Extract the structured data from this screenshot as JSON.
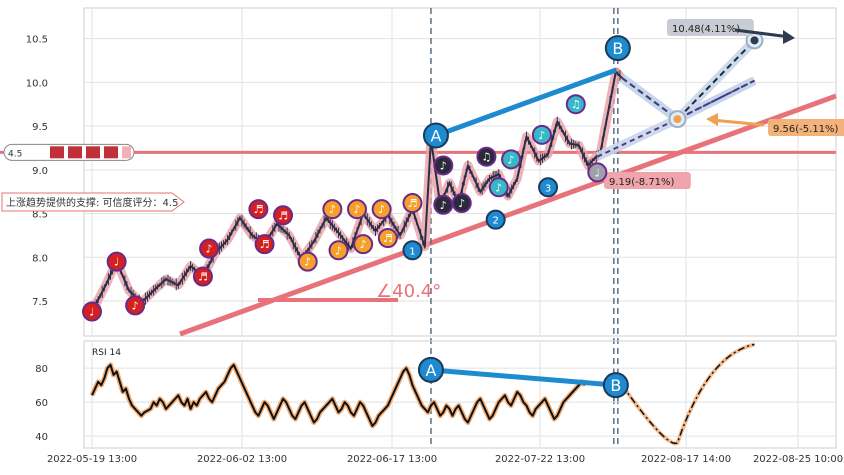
{
  "chart_data": [
    {
      "type": "candlestick",
      "y_ticks": [
        "7.5",
        "8.0",
        "8.5",
        "9.0",
        "9.5",
        "10.0",
        "10.5"
      ],
      "ylim": [
        7.1,
        10.85
      ],
      "x_ticks": [
        "2022-05-19 13:00",
        "2022-06-02 13:00",
        "2022-06-17 13:00",
        "2022-07-22 13:00",
        "2022-08-17 14:00",
        "2022-08-25 10:00"
      ],
      "support_level": {
        "label": "4.5",
        "value": 9.2
      },
      "support_text": "上涨趋势提供的支撑: 可信度评分：4.5",
      "angle_label": "∠40.4°",
      "wave_labels": [
        "A",
        "B"
      ],
      "wave_digits": [
        "1",
        "2",
        "3"
      ],
      "targets": [
        {
          "label": "10.48(4.11%)",
          "value": 10.48
        },
        {
          "label": "9.56(-5.11%)",
          "value": 9.56
        },
        {
          "label": "9.19(-8.71%)",
          "value": 9.19
        }
      ],
      "price_path": [
        [
          0,
          7.38
        ],
        [
          4,
          7.65
        ],
        [
          8,
          7.95
        ],
        [
          12,
          7.62
        ],
        [
          16,
          7.48
        ],
        [
          20,
          7.62
        ],
        [
          24,
          7.75
        ],
        [
          28,
          7.68
        ],
        [
          32,
          7.9
        ],
        [
          36,
          7.78
        ],
        [
          40,
          8.05
        ],
        [
          44,
          8.2
        ],
        [
          48,
          8.45
        ],
        [
          52,
          8.25
        ],
        [
          56,
          8.15
        ],
        [
          60,
          8.38
        ],
        [
          64,
          8.25
        ],
        [
          68,
          7.98
        ],
        [
          72,
          8.18
        ],
        [
          76,
          8.45
        ],
        [
          80,
          8.28
        ],
        [
          84,
          8.1
        ],
        [
          88,
          8.5
        ],
        [
          92,
          8.3
        ],
        [
          96,
          8.48
        ],
        [
          100,
          8.25
        ],
        [
          104,
          8.55
        ],
        [
          108,
          8.12
        ],
        [
          110,
          9.35
        ],
        [
          113,
          8.6
        ],
        [
          116,
          8.85
        ],
        [
          119,
          8.62
        ],
        [
          122,
          9.05
        ],
        [
          126,
          8.75
        ],
        [
          129,
          8.9
        ],
        [
          132,
          8.95
        ],
        [
          135,
          8.7
        ],
        [
          138,
          8.9
        ],
        [
          141,
          9.38
        ],
        [
          145,
          9.1
        ],
        [
          148,
          9.18
        ],
        [
          151,
          9.55
        ],
        [
          155,
          9.3
        ],
        [
          158,
          9.28
        ],
        [
          161,
          9.05
        ],
        [
          165,
          9.2
        ],
        [
          170,
          10.12
        ],
        [
          172,
          10.05
        ]
      ],
      "projection_path": [
        [
          172,
          10.05
        ],
        [
          190,
          9.58
        ],
        [
          215,
          10.48
        ]
      ],
      "projection_alt_path": [
        [
          172,
          10.05
        ],
        [
          190,
          9.58
        ],
        [
          215,
          10.02
        ]
      ],
      "projection_low_path": [
        [
          164,
          9.15
        ],
        [
          190,
          9.58
        ],
        [
          215,
          10.02
        ]
      ],
      "ab_price": {
        "A": [
          110,
          9.37
        ],
        "B": [
          170,
          10.14
        ]
      },
      "markers": [
        {
          "x": 0,
          "y": 7.38,
          "glyph": "♩",
          "color": "#d42020"
        },
        {
          "x": 8,
          "y": 7.95,
          "glyph": "♩",
          "color": "#d42020"
        },
        {
          "x": 14,
          "y": 7.45,
          "glyph": "♪",
          "color": "#d42020"
        },
        {
          "x": 36,
          "y": 7.78,
          "glyph": "♬",
          "color": "#d42020"
        },
        {
          "x": 38,
          "y": 8.1,
          "glyph": "♪",
          "color": "#d42020"
        },
        {
          "x": 54,
          "y": 8.55,
          "glyph": "♬",
          "color": "#d42020"
        },
        {
          "x": 56,
          "y": 8.15,
          "glyph": "♬",
          "color": "#d42020"
        },
        {
          "x": 62,
          "y": 8.48,
          "glyph": "♬",
          "color": "#d42020"
        },
        {
          "x": 70,
          "y": 7.95,
          "glyph": "♪",
          "color": "#f5a02a"
        },
        {
          "x": 78,
          "y": 8.55,
          "glyph": "♪",
          "color": "#f5a02a"
        },
        {
          "x": 80,
          "y": 8.08,
          "glyph": "♪",
          "color": "#f5a02a"
        },
        {
          "x": 86,
          "y": 8.55,
          "glyph": "♪",
          "color": "#f5a02a"
        },
        {
          "x": 88,
          "y": 8.15,
          "glyph": "♪",
          "color": "#f5a02a"
        },
        {
          "x": 94,
          "y": 8.55,
          "glyph": "♪",
          "color": "#f5a02a"
        },
        {
          "x": 96,
          "y": 8.22,
          "glyph": "♬",
          "color": "#f5a02a"
        },
        {
          "x": 104,
          "y": 8.62,
          "glyph": "♬",
          "color": "#f5a02a"
        },
        {
          "x": 114,
          "y": 9.05,
          "glyph": "♪",
          "color": "#2a2a3a"
        },
        {
          "x": 114,
          "y": 8.6,
          "glyph": "♪",
          "color": "#2a2a3a"
        },
        {
          "x": 120,
          "y": 8.62,
          "glyph": "♪",
          "color": "#2a2a3a"
        },
        {
          "x": 128,
          "y": 9.15,
          "glyph": "♫",
          "color": "#2a2a3a"
        },
        {
          "x": 132,
          "y": 8.8,
          "glyph": "♪",
          "color": "#36b8c8"
        },
        {
          "x": 136,
          "y": 9.12,
          "glyph": "♪",
          "color": "#36b8c8"
        },
        {
          "x": 146,
          "y": 9.4,
          "glyph": "♪",
          "color": "#36b8c8"
        },
        {
          "x": 157,
          "y": 9.75,
          "glyph": "♫",
          "color": "#36b8c8"
        },
        {
          "x": 164,
          "y": 8.97,
          "glyph": "♩",
          "color": "#a0a0a8"
        }
      ],
      "digit_markers": [
        {
          "x": 104,
          "y": 8.08,
          "digit_index": 0
        },
        {
          "x": 131,
          "y": 8.43,
          "digit_index": 1
        },
        {
          "x": 148,
          "y": 8.8,
          "digit_index": 2
        }
      ]
    },
    {
      "type": "line",
      "title": "RSI 14",
      "y_ticks": [
        "40",
        "60",
        "80"
      ],
      "ylim": [
        33,
        96
      ],
      "values": [
        64,
        68,
        72,
        70,
        74,
        80,
        82,
        76,
        78,
        72,
        66,
        68,
        62,
        58,
        56,
        54,
        52,
        54,
        55,
        56,
        60,
        58,
        62,
        60,
        56,
        58,
        60,
        62,
        64,
        60,
        58,
        62,
        56,
        60,
        58,
        62,
        64,
        66,
        62,
        60,
        64,
        68,
        70,
        72,
        76,
        80,
        82,
        78,
        74,
        70,
        66,
        62,
        58,
        54,
        52,
        56,
        60,
        58,
        54,
        50,
        54,
        58,
        62,
        60,
        56,
        52,
        50,
        54,
        58,
        60,
        56,
        52,
        48,
        50,
        54,
        56,
        58,
        60,
        62,
        58,
        54,
        56,
        60,
        58,
        54,
        52,
        56,
        60,
        58,
        54,
        50,
        46,
        48,
        52,
        54,
        56,
        58,
        62,
        66,
        70,
        74,
        78,
        80,
        76,
        70,
        66,
        62,
        58,
        56,
        54,
        58,
        60,
        56,
        52,
        54,
        58,
        56,
        52,
        56,
        58,
        54,
        50,
        48,
        52,
        56,
        60,
        62,
        58,
        54,
        50,
        52,
        56,
        60,
        62,
        64,
        60,
        58,
        62,
        66,
        64,
        60,
        58,
        54,
        52,
        56,
        58,
        60,
        62,
        58,
        54,
        50,
        52,
        56,
        60,
        62,
        64,
        66,
        68,
        70,
        72,
        70
      ],
      "projection": [
        [
          172,
          70
        ],
        [
          190,
          36
        ],
        [
          215,
          94
        ]
      ],
      "ab_rsi": {
        "A": [
          110,
          79
        ],
        "B": [
          170,
          70
        ]
      }
    }
  ]
}
